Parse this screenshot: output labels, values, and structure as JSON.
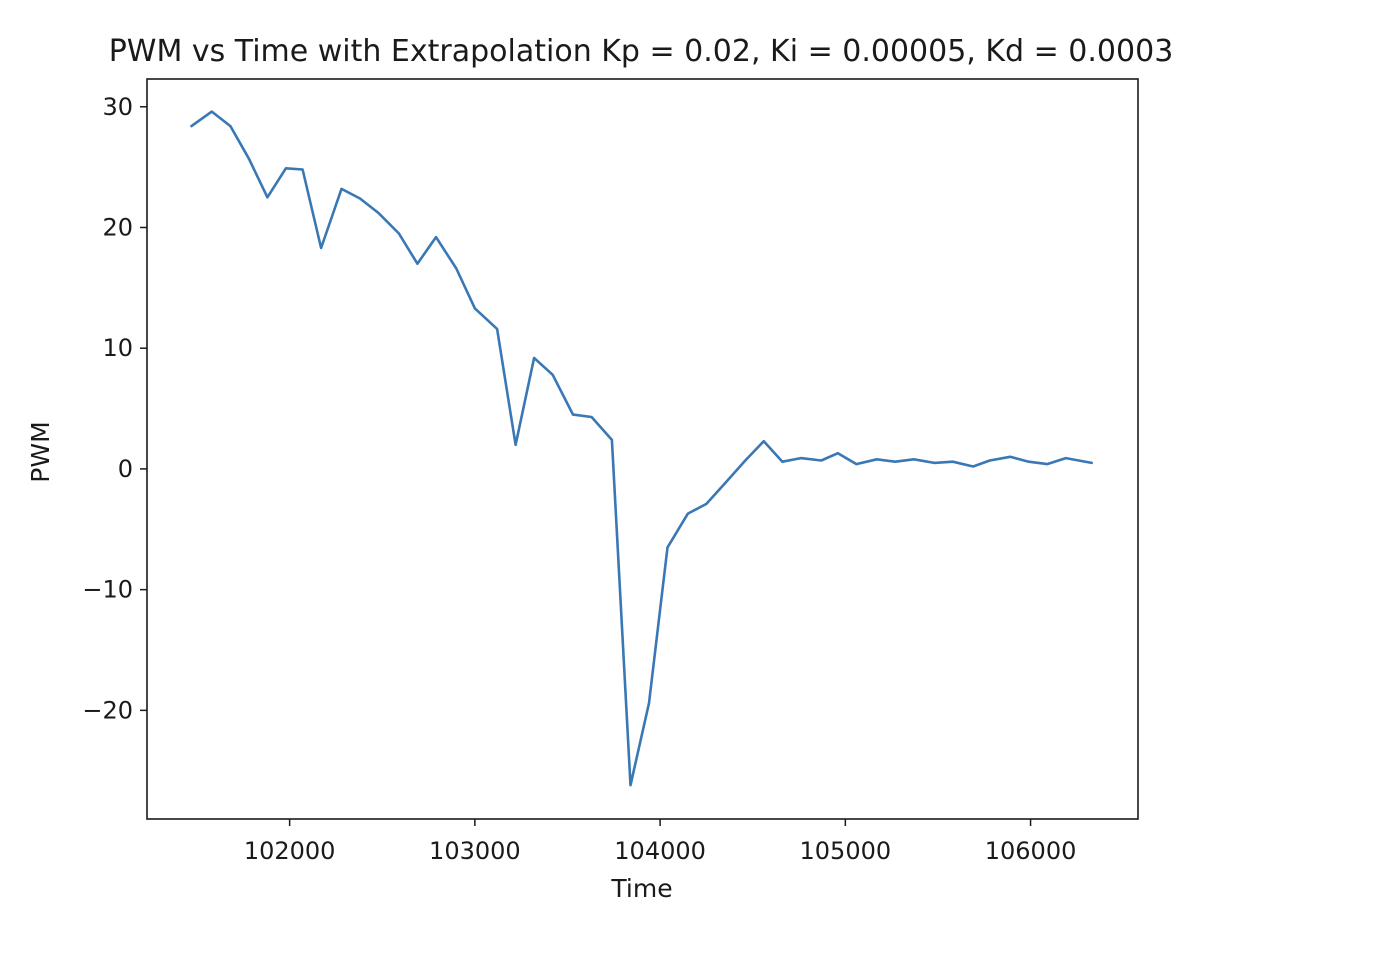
{
  "chart_data": {
    "type": "line",
    "title": "PWM vs Time with Extrapolation Kp = 0.02,  Ki = 0.00005, Kd = 0.0003",
    "xlabel": "Time",
    "ylabel": "PWM",
    "xlim": [
      101230,
      106580
    ],
    "ylim": [
      -29.0,
      32.3
    ],
    "xticks": [
      102000,
      103000,
      104000,
      105000,
      106000
    ],
    "yticks": [
      30,
      20,
      10,
      0,
      -10,
      -20
    ],
    "xtick_labels": [
      "102000",
      "103000",
      "104000",
      "105000",
      "106000"
    ],
    "ytick_labels": [
      "30",
      "20",
      "10",
      "0",
      "−10",
      "−20"
    ],
    "grid": false,
    "legend": "none",
    "series": [
      {
        "color": "#3a78b5",
        "x": [
          101470,
          101580,
          101680,
          101780,
          101880,
          101980,
          102070,
          102170,
          102280,
          102380,
          102480,
          102590,
          102690,
          102790,
          102900,
          103000,
          103120,
          103220,
          103320,
          103420,
          103530,
          103630,
          103740,
          103840,
          103940,
          104040,
          104150,
          104250,
          104350,
          104460,
          104560,
          104660,
          104760,
          104870,
          104960,
          105060,
          105170,
          105270,
          105370,
          105480,
          105580,
          105690,
          105780,
          105890,
          105990,
          106090,
          106190,
          106330
        ],
        "y": [
          28.4,
          29.6,
          28.4,
          25.7,
          22.5,
          24.9,
          24.8,
          18.3,
          23.2,
          22.4,
          21.2,
          19.5,
          17.0,
          19.2,
          16.6,
          13.3,
          11.6,
          2.0,
          9.2,
          7.8,
          4.5,
          4.3,
          2.4,
          -26.2,
          -19.4,
          -6.5,
          -3.7,
          -2.9,
          -1.2,
          0.7,
          2.3,
          0.6,
          0.9,
          0.7,
          1.3,
          0.4,
          0.8,
          0.6,
          0.8,
          0.5,
          0.6,
          0.2,
          0.7,
          1.0,
          0.6,
          0.4,
          0.9,
          0.5
        ]
      }
    ]
  }
}
